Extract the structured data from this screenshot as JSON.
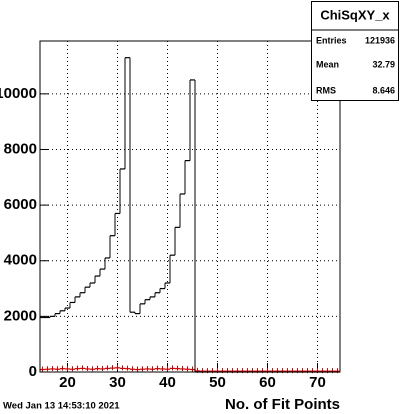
{
  "chart_data": {
    "type": "histogram",
    "x_label": "No. of Fit Points",
    "bins": [
      14.5,
      15.5,
      16.5,
      17.5,
      18.5,
      19.5,
      20.5,
      21.5,
      22.5,
      23.5,
      24.5,
      25.5,
      26.5,
      27.5,
      28.5,
      29.5,
      30.5,
      31.5,
      32.5,
      33.5,
      34.5,
      35.5,
      36.5,
      37.5,
      38.5,
      39.5,
      40.5,
      41.5,
      42.5,
      43.5,
      44.5,
      45.5,
      46.5,
      47.5,
      48.5,
      49.5,
      50.5,
      51.5,
      52.5,
      53.5,
      54.5,
      55.5,
      56.5,
      57.5,
      58.5,
      59.5,
      60.5,
      61.5,
      62.5,
      63.5,
      64.5,
      65.5,
      66.5,
      67.5,
      68.5,
      69.5,
      70.5,
      71.5,
      72.5,
      73.5,
      74.5
    ],
    "series": [
      {
        "color": "#000000",
        "values": [
          1960,
          1960,
          2000,
          2100,
          2200,
          2300,
          2500,
          2700,
          2850,
          3050,
          3200,
          3450,
          3700,
          4100,
          4900,
          5700,
          7300,
          11300,
          2150,
          2100,
          2450,
          2600,
          2700,
          2850,
          3000,
          3200,
          4200,
          5200,
          6400,
          7600,
          10500,
          0,
          0,
          0,
          0,
          0,
          0,
          0,
          0,
          0,
          0,
          0,
          0,
          0,
          0,
          0,
          0,
          0,
          0,
          0,
          0,
          0,
          0,
          0,
          0,
          0,
          0,
          0,
          0,
          0
        ]
      },
      {
        "color": "#cc0000",
        "values": [
          90,
          100,
          110,
          100,
          120,
          110,
          100,
          120,
          130,
          110,
          100,
          120,
          110,
          130,
          140,
          150,
          130,
          120,
          100,
          90,
          100,
          110,
          100,
          120,
          110,
          100,
          130,
          120,
          110,
          100,
          90,
          40,
          30,
          30,
          30,
          30,
          30,
          30,
          30,
          30,
          30,
          30,
          30,
          30,
          30,
          30,
          30,
          30,
          30,
          30,
          30,
          30,
          30,
          30,
          30,
          30,
          30,
          30,
          30,
          30
        ]
      }
    ],
    "xlim": [
      14.5,
      74.5
    ],
    "xticks": [
      20,
      30,
      40,
      50,
      60,
      70
    ],
    "ylim": [
      0,
      11900
    ],
    "yticks": [
      0,
      2000,
      4000,
      6000,
      8000,
      10000
    ],
    "grid": true,
    "stats": {
      "name": "ChiSqXY_x",
      "rows": [
        {
          "label": "Entries",
          "value": "121936"
        },
        {
          "label": "Mean",
          "value": "32.79"
        },
        {
          "label": "RMS",
          "value": "8.646"
        }
      ]
    },
    "timestamp": "Wed Jan 13 14:53:10 2021"
  }
}
